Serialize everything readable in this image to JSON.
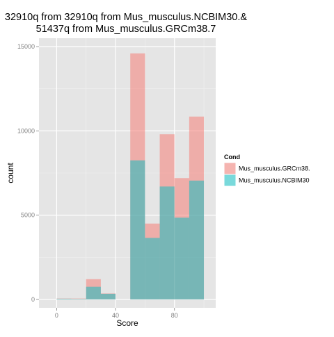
{
  "chart_data": {
    "type": "bar",
    "subtype": "overlaid-histogram",
    "title_lines": [
      "32910q from  32910q from  Mus_musculus.NCBIM30.&",
      "51437q from Mus_musculus.GRCm38.7"
    ],
    "xlabel": "Score",
    "ylabel": "count",
    "xlim": [
      -12,
      108
    ],
    "ylim": [
      -500,
      15500
    ],
    "x_ticks": [
      0,
      40,
      80
    ],
    "y_ticks": [
      0,
      5000,
      10000,
      15000
    ],
    "x_tick_labels": [
      "0",
      "40",
      "80"
    ],
    "y_tick_labels": [
      "0",
      "5000",
      "10000",
      "15000"
    ],
    "grid": true,
    "legend": {
      "title": "Cond",
      "position": "right"
    },
    "bins": [
      [
        0,
        10
      ],
      [
        10,
        20
      ],
      [
        20,
        30
      ],
      [
        30,
        40
      ],
      [
        40,
        50
      ],
      [
        50,
        60
      ],
      [
        60,
        70
      ],
      [
        70,
        80
      ],
      [
        80,
        90
      ],
      [
        90,
        100
      ]
    ],
    "series": [
      {
        "name": "Mus_musculus.GRCm38.",
        "color": "#F8766D",
        "values": [
          50,
          50,
          1200,
          350,
          0,
          14600,
          4500,
          9800,
          7200,
          10850
        ]
      },
      {
        "name": "Mus_musculus.NCBIM30",
        "color": "#00BFC4",
        "values": [
          40,
          30,
          750,
          330,
          0,
          8250,
          3650,
          6700,
          4850,
          7050
        ]
      }
    ]
  }
}
